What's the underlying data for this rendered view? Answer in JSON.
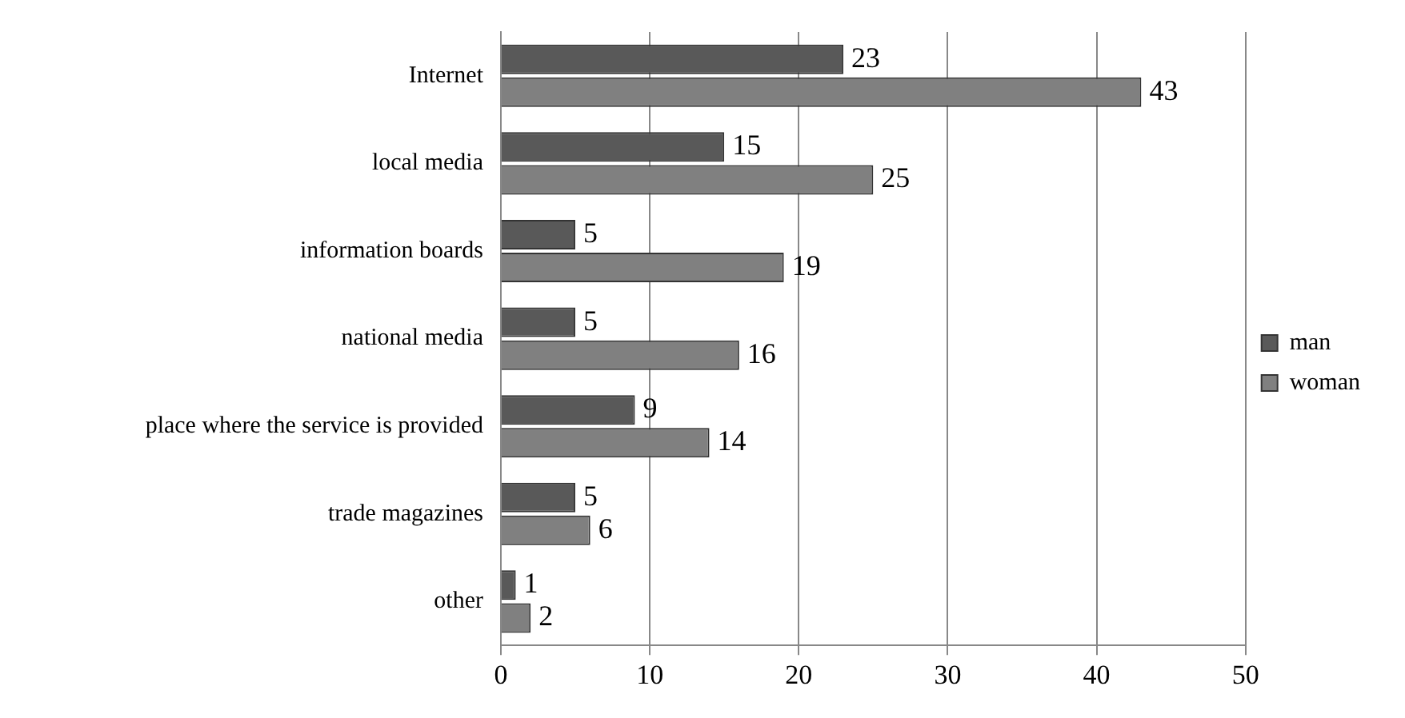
{
  "chart_data": {
    "type": "bar",
    "orientation": "horizontal",
    "categories": [
      "Internet",
      "local media",
      "information boards",
      "national media",
      "place where the service is provided",
      "trade magazines",
      "other"
    ],
    "series": [
      {
        "name": "man",
        "color": "#595959",
        "values": [
          23,
          15,
          5,
          5,
          9,
          5,
          1
        ]
      },
      {
        "name": "woman",
        "color": "#808080",
        "values": [
          43,
          25,
          19,
          16,
          14,
          6,
          2
        ]
      }
    ],
    "xlim": [
      0,
      50
    ],
    "xticks": [
      0,
      10,
      20,
      30,
      40,
      50
    ],
    "grid": "x",
    "legend": "right",
    "data_labels": true
  }
}
